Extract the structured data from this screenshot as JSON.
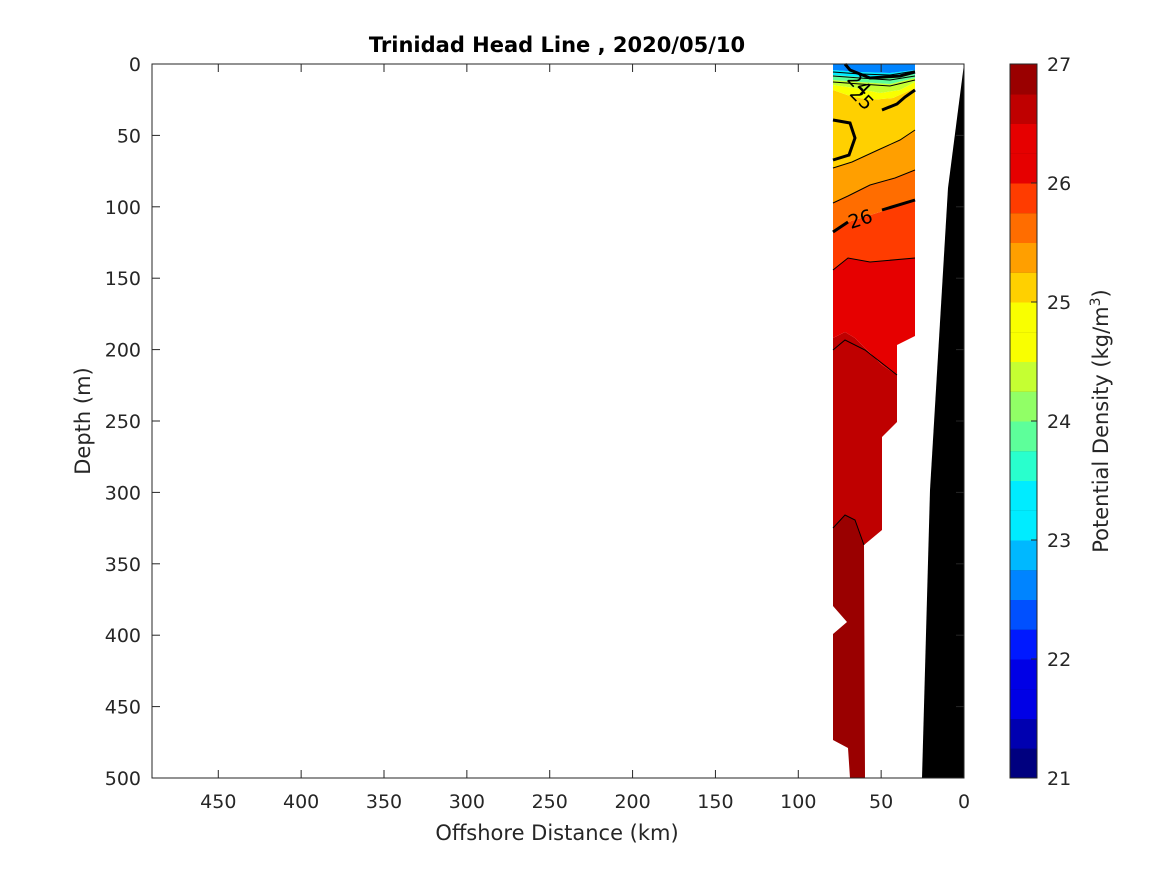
{
  "chart_data": {
    "type": "contour",
    "title": "Trinidad Head Line , 2020/05/10",
    "xlabel": "Offshore Distance (km)",
    "ylabel": "Depth (m)",
    "colorbar_label_main": "Potential Density (kg/m",
    "colorbar_label_sup": "3",
    "colorbar_label_end": ")",
    "x_reversed": true,
    "y_reversed": true,
    "xlim": [
      0,
      490
    ],
    "ylim": [
      0,
      500
    ],
    "clim": [
      21,
      27
    ],
    "x_ticks": [
      450,
      400,
      350,
      300,
      250,
      200,
      150,
      100,
      50,
      0
    ],
    "y_ticks": [
      0,
      50,
      100,
      150,
      200,
      250,
      300,
      350,
      400,
      450,
      500
    ],
    "colorbar_ticks": [
      21,
      22,
      23,
      24,
      25,
      26,
      27
    ],
    "colorbar_levels": 24,
    "colormap": [
      "#00007f",
      "#0000b0",
      "#0000e6",
      "#0019ff",
      "#0050ff",
      "#0084ff",
      "#00b8ff",
      "#00ecff",
      "#29ffcd",
      "#5dff9a",
      "#91ff66",
      "#c5ff32",
      "#f9ff00",
      "#ffd000",
      "#ff9f00",
      "#ff6d00",
      "#ff3c00",
      "#e60000",
      "#bf0000",
      "#9a0000"
    ],
    "contour_labels": [
      {
        "text": "24",
        "distance_km": 59,
        "depth_m": 12
      },
      {
        "text": "25",
        "distance_km": 60,
        "depth_m": 25
      },
      {
        "text": "26",
        "distance_km": 62,
        "depth_m": 106
      }
    ],
    "bands": [
      {
        "name": "surface-band-23",
        "color": "#0084ff",
        "depth_range": [
          0,
          3
        ]
      },
      {
        "name": "surface-band-23-5",
        "color": "#00ecff",
        "depth_range": [
          3,
          6
        ]
      },
      {
        "name": "surface-band-24",
        "color": "#5dff9a",
        "depth_range": [
          6,
          9
        ]
      },
      {
        "name": "surface-band-24-5",
        "color": "#c5ff32",
        "depth_range": [
          9,
          13
        ]
      },
      {
        "name": "surface-band-25",
        "color": "#f9ff00",
        "depth_range": [
          13,
          20
        ]
      },
      {
        "name": "yellow-band-25",
        "color": "#ffd000",
        "depth_range": [
          20,
          55
        ]
      },
      {
        "name": "orange-band-25-5",
        "color": "#ff9f00",
        "depth_range": [
          55,
          95
        ]
      },
      {
        "name": "orange-band-25-75",
        "color": "#ff6d00",
        "depth_range": [
          95,
          115
        ]
      },
      {
        "name": "red-band-26",
        "color": "#ff3c00",
        "depth_range": [
          115,
          140
        ]
      },
      {
        "name": "red-band-26-25",
        "color": "#e60000",
        "depth_range": [
          140,
          200
        ]
      },
      {
        "name": "darkred-band-26-5",
        "color": "#bf0000",
        "depth_range": [
          200,
          320
        ]
      },
      {
        "name": "maroon-band-26-75",
        "color": "#9a0000",
        "depth_range": [
          320,
          500
        ]
      }
    ],
    "bathymetry_color": "#000000",
    "grid": false
  }
}
